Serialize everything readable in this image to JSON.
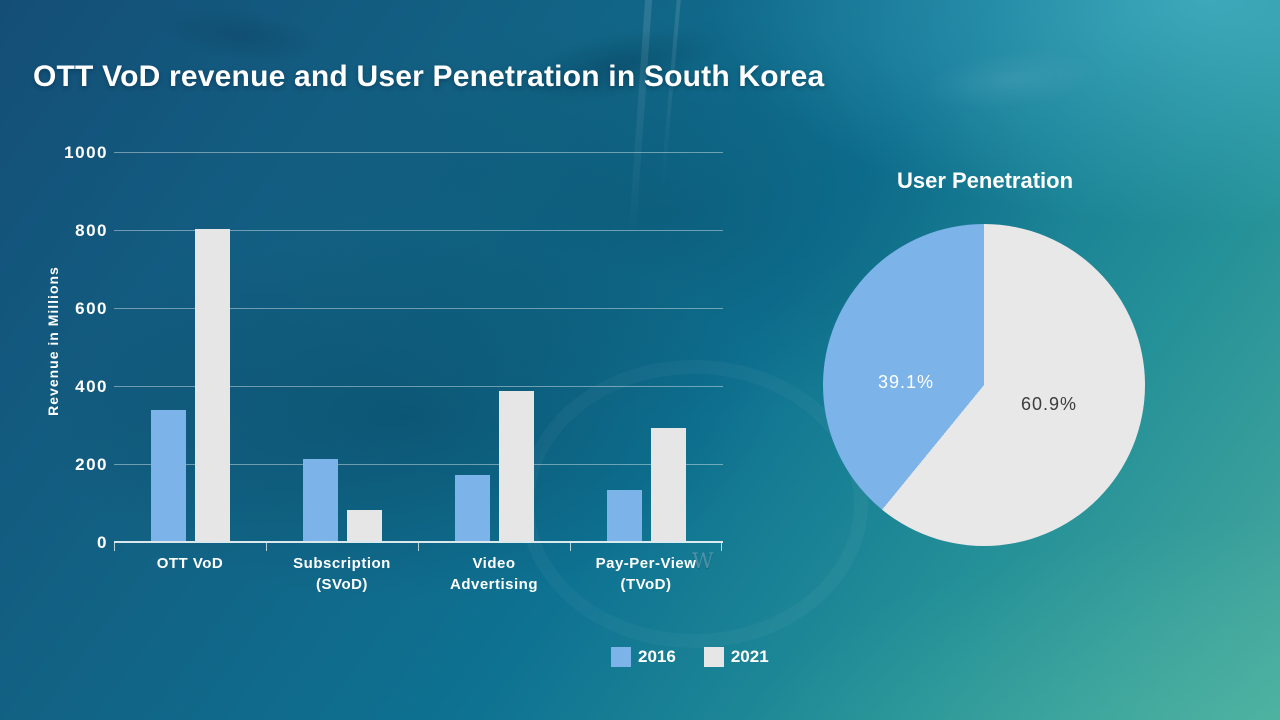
{
  "slide": {
    "title": "OTT VoD revenue and User Penetration in South Korea",
    "watermark": "W",
    "background_colors": {
      "top_left": "#15527a",
      "top_right": "#3aa3b5",
      "bottom_left": "#1e8aa3",
      "bottom_right": "#47ab9f"
    }
  },
  "chart_data": [
    {
      "type": "bar",
      "title": "",
      "ylabel": "Revenue in Millions",
      "xlabel": "",
      "ylim": [
        0,
        1000
      ],
      "yticks": [
        0,
        200,
        400,
        600,
        800,
        1000
      ],
      "grid": true,
      "legend_position": "bottom",
      "categories": [
        "OTT VoD",
        "Subscription (SVoD)",
        "Video Advertising",
        "Pay-Per-View (TVoD)"
      ],
      "category_lines": [
        [
          "OTT VoD"
        ],
        [
          "Subscription",
          "(SVoD)"
        ],
        [
          "Video",
          "Advertising"
        ],
        [
          "Pay-Per-View",
          "(TVoD)"
        ]
      ],
      "series": [
        {
          "name": "2016",
          "color": "#7cb4ea",
          "values": [
            335,
            210,
            170,
            130
          ]
        },
        {
          "name": "2021",
          "color": "#e6e6e6",
          "values": [
            800,
            80,
            385,
            290
          ]
        }
      ]
    },
    {
      "type": "pie",
      "title": "User Penetration",
      "start_angle_deg": 0,
      "direction": "clockwise",
      "slices": [
        {
          "name": "2021",
          "label": "60.9%",
          "value": 60.9,
          "color": "#e8e8e8",
          "label_color": "#3d3d3d"
        },
        {
          "name": "2016",
          "label": "39.1%",
          "value": 39.1,
          "color": "#7cb4ea",
          "label_color": "#ffffff"
        }
      ]
    }
  ]
}
